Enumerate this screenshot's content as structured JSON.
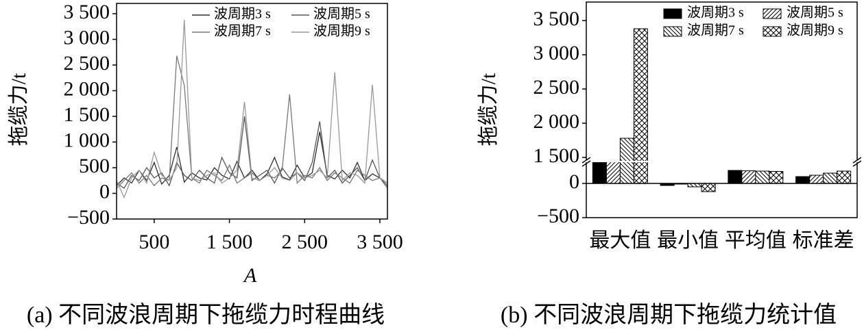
{
  "chart_data": [
    {
      "type": "line",
      "caption": "(a) 不同波浪周期下拖缆力时程曲线",
      "xlabel": "A",
      "ylabel": "拖缆力/t",
      "x": [
        0,
        100,
        200,
        300,
        400,
        500,
        600,
        700,
        800,
        900,
        1000,
        1100,
        1200,
        1300,
        1400,
        1500,
        1600,
        1700,
        1800,
        1900,
        2000,
        2100,
        2200,
        2300,
        2400,
        2500,
        2600,
        2700,
        2800,
        2900,
        3000,
        3100,
        3200,
        3300,
        3400,
        3500,
        3600
      ],
      "xlim": [
        0,
        3600
      ],
      "xticks": [
        500,
        {
          "value": 1500,
          "label": "1 500"
        },
        {
          "value": 2500,
          "label": "2 500"
        },
        {
          "value": 3500,
          "label": "3 500"
        }
      ],
      "ylim": [
        -500,
        3700
      ],
      "yticks": [
        {
          "value": -500,
          "label": "−500"
        },
        0,
        500,
        {
          "value": 1000,
          "label": "1 000"
        },
        {
          "value": 1500,
          "label": "1 500"
        },
        {
          "value": 2000,
          "label": "2 000"
        },
        {
          "value": 2500,
          "label": "2 500"
        },
        {
          "value": 3000,
          "label": "3 000"
        },
        {
          "value": 3500,
          "label": "3 500"
        }
      ],
      "legend": "upper right",
      "series": [
        {
          "name": "波周期3 s",
          "color": "#2b2b2b",
          "values": [
            150,
            300,
            200,
            450,
            250,
            600,
            180,
            350,
            900,
            220,
            400,
            300,
            260,
            500,
            350,
            280,
            620,
            300,
            450,
            250,
            380,
            700,
            320,
            260,
            550,
            300,
            400,
            1200,
            350,
            280,
            450,
            300,
            600,
            250,
            380,
            300,
            200
          ]
        },
        {
          "name": "波周期5 s",
          "color": "#555555",
          "values": [
            200,
            100,
            350,
            250,
            500,
            300,
            400,
            150,
            600,
            350,
            250,
            450,
            300,
            200,
            700,
            400,
            300,
            1500,
            250,
            350,
            450,
            200,
            500,
            300,
            400,
            250,
            600,
            1400,
            300,
            450,
            200,
            350,
            500,
            250,
            650,
            300,
            150
          ]
        },
        {
          "name": "波周期7 s",
          "color": "#777777",
          "values": [
            100,
            250,
            400,
            200,
            350,
            150,
            300,
            250,
            2680,
            2100,
            300,
            200,
            450,
            350,
            250,
            550,
            200,
            300,
            400,
            250,
            350,
            300,
            450,
            1930,
            200,
            350,
            300,
            500,
            250,
            400,
            300,
            200,
            450,
            350,
            250,
            300,
            100
          ]
        },
        {
          "name": "波周期9 s",
          "color": "#999999",
          "values": [
            250,
            -80,
            300,
            450,
            200,
            800,
            350,
            250,
            500,
            3380,
            300,
            250,
            350,
            400,
            200,
            300,
            450,
            1780,
            300,
            250,
            350,
            500,
            300,
            250,
            400,
            300,
            350,
            450,
            300,
            2360,
            250,
            400,
            350,
            200,
            2120,
            300,
            200
          ]
        }
      ]
    },
    {
      "type": "bar",
      "caption": "(b) 不同波浪周期下拖缆力统计值",
      "ylabel": "拖缆力/t",
      "categories": [
        "最大值",
        "最小值",
        "平均值",
        "标准差"
      ],
      "ylim": [
        -500,
        3770
      ],
      "axis_break": [
        320,
        1450
      ],
      "yticks": [
        {
          "value": -500,
          "label": "−500"
        },
        0,
        {
          "value": 1500,
          "label": "1 500"
        },
        {
          "value": 2000,
          "label": "2 000"
        },
        {
          "value": 2500,
          "label": "2 500"
        },
        {
          "value": 3000,
          "label": "3 000"
        },
        {
          "value": 3500,
          "label": "3 500"
        }
      ],
      "legend": "upper right",
      "series": [
        {
          "name": "波周期3 s",
          "color": "#000000",
          "hatch": "",
          "values": [
            1200,
            -30,
            190,
            100
          ]
        },
        {
          "name": "波周期5 s",
          "color": "#000000",
          "hatch": "////",
          "values": [
            1350,
            -10,
            185,
            120
          ]
        },
        {
          "name": "波周期7 s",
          "color": "#000000",
          "hatch": "\\\\\\\\",
          "values": [
            1780,
            -50,
            180,
            150
          ]
        },
        {
          "name": "波周期9 s",
          "color": "#000000",
          "hatch": "xxx",
          "values": [
            3380,
            -120,
            175,
            180
          ]
        }
      ]
    }
  ]
}
